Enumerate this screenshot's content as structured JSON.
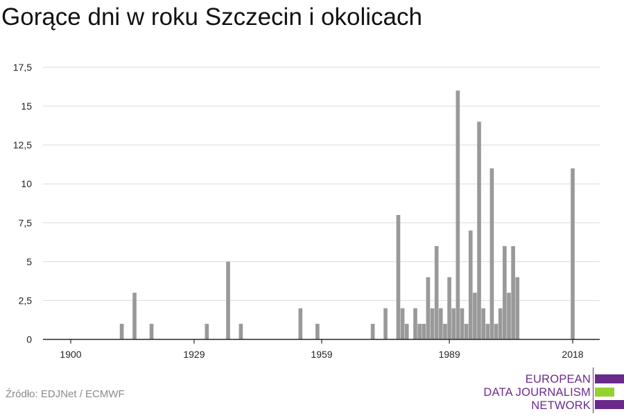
{
  "title": "Gorące dni w roku Szczecin i okolicach",
  "source": "Źródło: EDJNet / ECMWF",
  "logo": {
    "lines": [
      "EUROPEAN",
      "DATA JOURNALISM",
      "NETWORK"
    ],
    "colors": {
      "purple": "#6a2a8c",
      "green": "#95d12f"
    }
  },
  "chart_data": {
    "type": "bar",
    "title": "Gorące dni w roku Szczecin i okolicach",
    "xlabel": "",
    "ylabel": "",
    "x_ticks": [
      1900,
      1929,
      1959,
      1989,
      2018
    ],
    "y_ticks": [
      "0",
      "2,5",
      "5",
      "7,5",
      "10",
      "12,5",
      "15",
      "17,5"
    ],
    "ylim": [
      0,
      17.5
    ],
    "xlim": [
      1894,
      2024
    ],
    "grid": true,
    "bar_color": "#999999",
    "x": [
      1912,
      1915,
      1919,
      1932,
      1937,
      1940,
      1954,
      1958,
      1971,
      1974,
      1977,
      1978,
      1979,
      1981,
      1982,
      1983,
      1984,
      1985,
      1986,
      1987,
      1988,
      1989,
      1990,
      1991,
      1992,
      1993,
      1994,
      1995,
      1996,
      1997,
      1998,
      1999,
      2000,
      2001,
      2002,
      2003,
      2004,
      2005,
      2006,
      2007,
      2008,
      2009,
      2010,
      2011,
      2012,
      2013,
      2018
    ],
    "values": [
      1,
      3,
      1,
      1,
      5,
      1,
      2,
      1,
      1,
      2,
      8,
      2,
      1,
      2,
      1,
      1,
      4,
      2,
      6,
      2,
      1,
      4,
      2,
      16,
      2,
      1,
      7,
      3,
      14,
      2,
      1,
      11,
      1,
      2,
      6,
      3,
      6,
      4,
      0,
      0,
      0,
      0,
      0,
      0,
      0,
      0,
      11
    ]
  }
}
